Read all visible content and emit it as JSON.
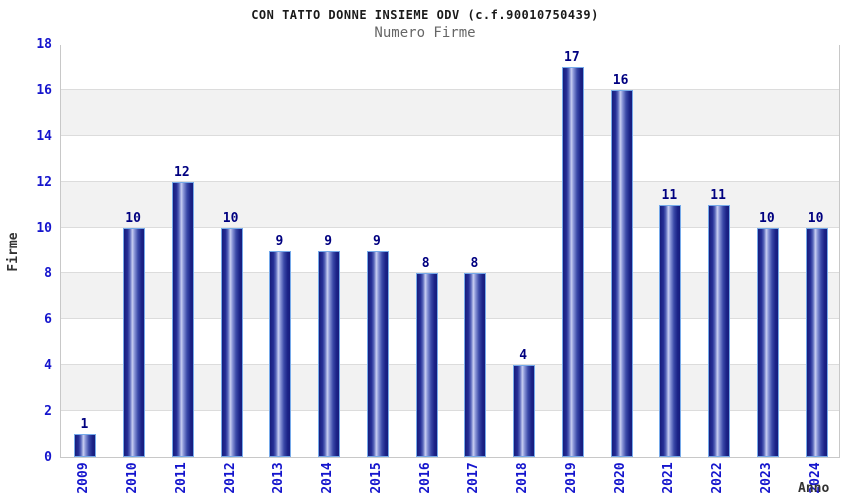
{
  "chart_data": {
    "type": "bar",
    "title": "CON TATTO DONNE INSIEME ODV (c.f.90010750439)",
    "subtitle": "Numero Firme",
    "xlabel": "Anno",
    "ylabel": "Firme",
    "categories": [
      "2009",
      "2010",
      "2011",
      "2012",
      "2013",
      "2014",
      "2015",
      "2016",
      "2017",
      "2018",
      "2019",
      "2020",
      "2021",
      "2022",
      "2023",
      "2024"
    ],
    "values": [
      1,
      10,
      12,
      10,
      9,
      9,
      9,
      8,
      8,
      4,
      17,
      16,
      11,
      11,
      10,
      10
    ],
    "ylim": [
      0,
      18
    ],
    "ytick_step": 2,
    "grid": "horizontal-bands-alternating",
    "legend": "none",
    "colors": {
      "bar_dark": "#171d7d",
      "bar_highlight": "#c9cff2",
      "bar_border": "#76aaea",
      "value_label": "#000080",
      "tick_label": "#1515cd",
      "band_gray": "#f2f2f2",
      "band_white": "#ffffff",
      "plot_border": "#c8c8c8",
      "title": "#1a1a1a",
      "subtitle": "#666666",
      "axis_title": "#333333"
    }
  }
}
